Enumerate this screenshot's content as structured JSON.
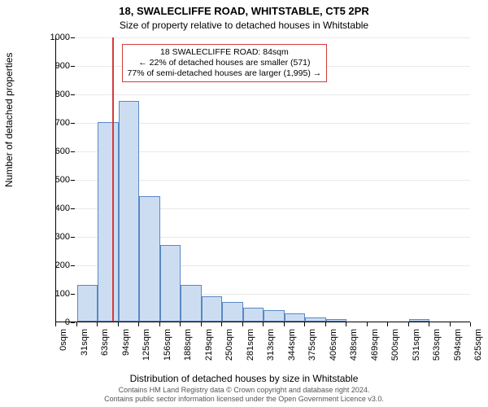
{
  "title_main": "18, SWALECLIFFE ROAD, WHITSTABLE, CT5 2PR",
  "title_sub": "Size of property relative to detached houses in Whitstable",
  "y_axis_label": "Number of detached properties",
  "x_axis_label": "Distribution of detached houses by size in Whitstable",
  "footer_line1": "Contains HM Land Registry data © Crown copyright and database right 2024.",
  "footer_line2": "Contains public sector information licensed under the Open Government Licence v3.0.",
  "annotation": {
    "line1": "18 SWALECLIFFE ROAD: 84sqm",
    "line2": "← 22% of detached houses are smaller (571)",
    "line3": "77% of semi-detached houses are larger (1,995) →"
  },
  "chart": {
    "type": "histogram",
    "ylim": [
      0,
      1000
    ],
    "ytick_step": 100,
    "bar_fill": "#cdddf1",
    "bar_border": "#5988c4",
    "grid_color": "#e9e9e9",
    "marker_line_color": "#d43b3b",
    "marker_x_value": 84,
    "x_tick_labels": [
      "0sqm",
      "31sqm",
      "63sqm",
      "94sqm",
      "125sqm",
      "156sqm",
      "188sqm",
      "219sqm",
      "250sqm",
      "281sqm",
      "313sqm",
      "344sqm",
      "375sqm",
      "406sqm",
      "438sqm",
      "469sqm",
      "500sqm",
      "531sqm",
      "563sqm",
      "594sqm",
      "625sqm"
    ],
    "x_max": 625,
    "bin_width_value": 31.25,
    "values": [
      0,
      130,
      700,
      775,
      440,
      270,
      130,
      90,
      70,
      50,
      40,
      30,
      15,
      10,
      0,
      0,
      0,
      10,
      0,
      0
    ]
  }
}
